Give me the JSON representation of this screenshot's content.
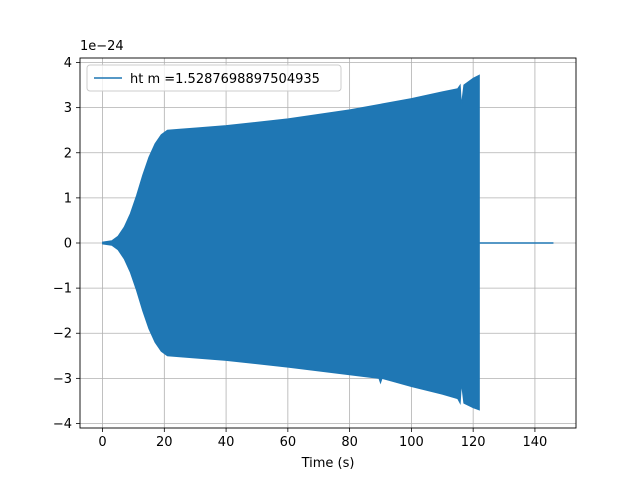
{
  "chart_data": {
    "type": "line",
    "xlabel": "Time (s)",
    "ylabel": "",
    "offset_label": "1e−24",
    "xlim": [
      -7.3,
      153.3
    ],
    "ylim": [
      -4.1,
      4.1
    ],
    "xticks": [
      0,
      20,
      40,
      60,
      80,
      100,
      120,
      140
    ],
    "yticks": [
      -4,
      -3,
      -2,
      -1,
      0,
      1,
      2,
      3,
      4
    ],
    "xtick_labels": [
      "0",
      "20",
      "40",
      "60",
      "80",
      "100",
      "120",
      "140"
    ],
    "ytick_labels": [
      "−4",
      "−3",
      "−2",
      "−1",
      "0",
      "1",
      "2",
      "3",
      "4"
    ],
    "grid": true,
    "legend_position": "upper-left",
    "series": [
      {
        "name": "ht m =1.5287698897504935",
        "color": "#1f77b4",
        "style": "dense oscillation (filled envelope)",
        "envelope_upper": [
          {
            "x": 0,
            "y": 0.02
          },
          {
            "x": 3,
            "y": 0.05
          },
          {
            "x": 5,
            "y": 0.15
          },
          {
            "x": 7,
            "y": 0.35
          },
          {
            "x": 9,
            "y": 0.65
          },
          {
            "x": 11,
            "y": 1.05
          },
          {
            "x": 13,
            "y": 1.5
          },
          {
            "x": 15,
            "y": 1.9
          },
          {
            "x": 17,
            "y": 2.2
          },
          {
            "x": 19,
            "y": 2.4
          },
          {
            "x": 21,
            "y": 2.5
          },
          {
            "x": 25,
            "y": 2.52
          },
          {
            "x": 40,
            "y": 2.6
          },
          {
            "x": 60,
            "y": 2.75
          },
          {
            "x": 80,
            "y": 2.95
          },
          {
            "x": 100,
            "y": 3.2
          },
          {
            "x": 110,
            "y": 3.35
          },
          {
            "x": 115,
            "y": 3.42
          },
          {
            "x": 115.8,
            "y": 3.5
          },
          {
            "x": 116.2,
            "y": 3.05
          },
          {
            "x": 117,
            "y": 3.5
          },
          {
            "x": 120,
            "y": 3.65
          },
          {
            "x": 122,
            "y": 3.72
          }
        ],
        "envelope_lower": [
          {
            "x": 0,
            "y": -0.02
          },
          {
            "x": 3,
            "y": -0.05
          },
          {
            "x": 5,
            "y": -0.15
          },
          {
            "x": 7,
            "y": -0.35
          },
          {
            "x": 9,
            "y": -0.65
          },
          {
            "x": 11,
            "y": -1.05
          },
          {
            "x": 13,
            "y": -1.5
          },
          {
            "x": 15,
            "y": -1.9
          },
          {
            "x": 17,
            "y": -2.2
          },
          {
            "x": 19,
            "y": -2.4
          },
          {
            "x": 21,
            "y": -2.5
          },
          {
            "x": 25,
            "y": -2.52
          },
          {
            "x": 40,
            "y": -2.6
          },
          {
            "x": 60,
            "y": -2.75
          },
          {
            "x": 80,
            "y": -2.92
          },
          {
            "x": 89.5,
            "y": -3.0
          },
          {
            "x": 90,
            "y": -3.1
          },
          {
            "x": 90.5,
            "y": -3.0
          },
          {
            "x": 100,
            "y": -3.18
          },
          {
            "x": 110,
            "y": -3.35
          },
          {
            "x": 115,
            "y": -3.45
          },
          {
            "x": 115.8,
            "y": -3.55
          },
          {
            "x": 116.2,
            "y": -3.1
          },
          {
            "x": 117,
            "y": -3.55
          },
          {
            "x": 120,
            "y": -3.65
          },
          {
            "x": 122,
            "y": -3.7
          }
        ],
        "tail": [
          {
            "x": 122,
            "y": 0
          },
          {
            "x": 146,
            "y": 0
          }
        ]
      }
    ]
  }
}
